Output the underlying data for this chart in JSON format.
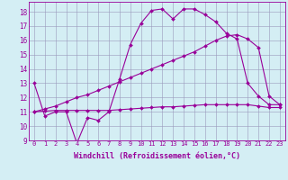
{
  "line1_y": [
    13.0,
    10.7,
    11.0,
    11.0,
    8.8,
    10.6,
    10.4,
    11.0,
    13.3,
    15.7,
    17.2,
    18.1,
    18.2,
    17.5,
    18.2,
    18.2,
    17.8,
    17.3,
    16.5,
    16.1,
    13.0,
    12.1,
    11.5,
    11.5
  ],
  "line2_y": [
    11.0,
    11.2,
    11.4,
    11.7,
    12.0,
    12.2,
    12.5,
    12.8,
    13.1,
    13.4,
    13.7,
    14.0,
    14.3,
    14.6,
    14.9,
    15.2,
    15.6,
    16.0,
    16.3,
    16.4,
    16.1,
    15.5,
    12.1,
    11.5
  ],
  "line3_y": [
    11.0,
    11.05,
    11.1,
    11.1,
    11.1,
    11.1,
    11.1,
    11.1,
    11.15,
    11.2,
    11.25,
    11.3,
    11.35,
    11.35,
    11.4,
    11.45,
    11.5,
    11.5,
    11.5,
    11.5,
    11.5,
    11.4,
    11.3,
    11.3
  ],
  "bg_color": "#d4eef4",
  "line_color": "#990099",
  "xlabel": "Windchill (Refroidissement éolien,°C)",
  "ylim": [
    9.0,
    18.7
  ],
  "xlim": [
    -0.5,
    23.5
  ],
  "yticks": [
    9,
    10,
    11,
    12,
    13,
    14,
    15,
    16,
    17,
    18
  ],
  "xticks": [
    0,
    1,
    2,
    3,
    4,
    5,
    6,
    7,
    8,
    9,
    10,
    11,
    12,
    13,
    14,
    15,
    16,
    17,
    18,
    19,
    20,
    21,
    22,
    23
  ],
  "grid_color": "#9999bb",
  "markersize": 2.0,
  "linewidth": 0.8,
  "title_fontsize": 6,
  "tick_fontsize": 5,
  "xlabel_fontsize": 6
}
